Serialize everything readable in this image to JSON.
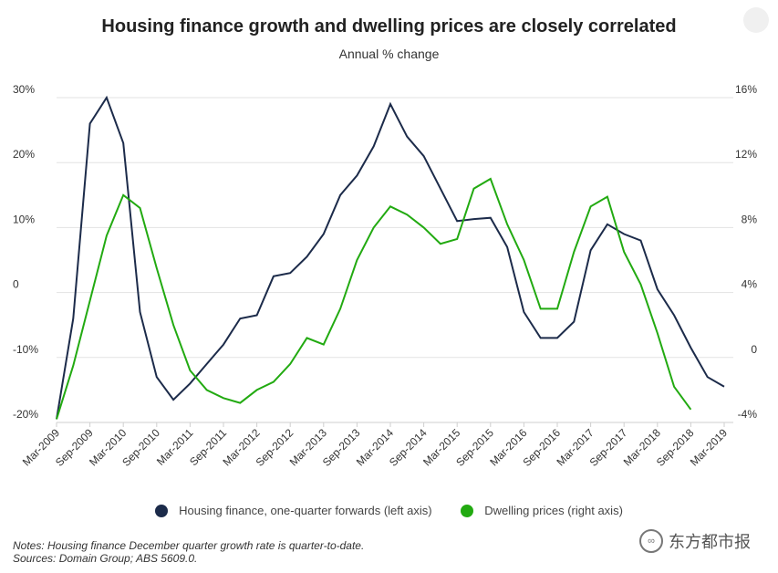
{
  "title": "Housing finance growth and dwelling prices are closely correlated",
  "subtitle": "Annual % change",
  "colors": {
    "finance": "#1c2b4a",
    "prices": "#22aa11",
    "grid": "#e3e3e3"
  },
  "chart_data": {
    "type": "line",
    "x": [
      "Mar-2009",
      "Jun-2009",
      "Sep-2009",
      "Dec-2009",
      "Mar-2010",
      "Jun-2010",
      "Sep-2010",
      "Dec-2010",
      "Mar-2011",
      "Jun-2011",
      "Sep-2011",
      "Dec-2011",
      "Mar-2012",
      "Jun-2012",
      "Sep-2012",
      "Dec-2012",
      "Mar-2013",
      "Jun-2013",
      "Sep-2013",
      "Dec-2013",
      "Mar-2014",
      "Jun-2014",
      "Sep-2014",
      "Dec-2014",
      "Mar-2015",
      "Jun-2015",
      "Sep-2015",
      "Dec-2015",
      "Mar-2016",
      "Jun-2016",
      "Sep-2016",
      "Dec-2016",
      "Mar-2017",
      "Jun-2017",
      "Sep-2017",
      "Dec-2017",
      "Mar-2018",
      "Jun-2018",
      "Sep-2018",
      "Dec-2018",
      "Mar-2019"
    ],
    "x_tick_labels": [
      "Mar-2009",
      "Sep-2009",
      "Mar-2010",
      "Sep-2010",
      "Mar-2011",
      "Sep-2011",
      "Mar-2012",
      "Sep-2012",
      "Mar-2013",
      "Sep-2013",
      "Mar-2014",
      "Sep-2014",
      "Mar-2015",
      "Sep-2015",
      "Mar-2016",
      "Sep-2016",
      "Mar-2017",
      "Sep-2017",
      "Mar-2018",
      "Sep-2018",
      "Mar-2019"
    ],
    "left_axis": {
      "ylim": [
        -20,
        30
      ],
      "ticks": [
        "30%",
        "20%",
        "10%",
        "0",
        "-10%",
        "-20%"
      ]
    },
    "right_axis": {
      "ylim": [
        -4,
        16
      ],
      "ticks": [
        "16%",
        "12%",
        "8%",
        "4%",
        "0",
        "-4%"
      ]
    },
    "series": [
      {
        "name": "Housing finance, one-quarter forwards (left axis)",
        "axis": "left",
        "values": [
          -19.5,
          -4,
          26,
          30,
          23,
          -3,
          -13,
          -16.5,
          -14,
          -11,
          -8,
          -4,
          -3.5,
          2.5,
          3,
          5.5,
          9,
          15,
          18,
          22.5,
          29,
          24,
          21,
          16,
          11,
          11.3,
          11.5,
          7,
          -3,
          -7,
          -7,
          -4.5,
          6.5,
          10.5,
          9,
          8,
          0.5,
          -3.5,
          -8.5,
          -13,
          -14.5
        ]
      },
      {
        "name": "Dwelling prices (right axis)",
        "axis": "right",
        "values": [
          -3.8,
          -0.5,
          3.5,
          7.5,
          10,
          9.2,
          5.5,
          2,
          -0.8,
          -2,
          -2.5,
          -2.8,
          -2,
          -1.5,
          -0.4,
          1.2,
          0.8,
          3,
          6,
          8,
          9.3,
          8.8,
          8,
          7,
          7.3,
          10.4,
          11,
          8.2,
          6,
          3,
          3,
          6.5,
          9.3,
          9.9,
          6.5,
          4.5,
          1.5,
          -1.8,
          -3.2,
          null,
          null
        ]
      }
    ]
  },
  "legend": {
    "finance_label": "Housing finance, one-quarter forwards (left axis)",
    "prices_label": "Dwelling prices (right axis)"
  },
  "notes": {
    "line1": "Notes: Housing finance December quarter growth rate is quarter-to-date.",
    "line2": "Sources: Domain Group; ABS 5609.0."
  },
  "watermark": {
    "text": "东方都市报",
    "icon": "wechat-icon"
  }
}
